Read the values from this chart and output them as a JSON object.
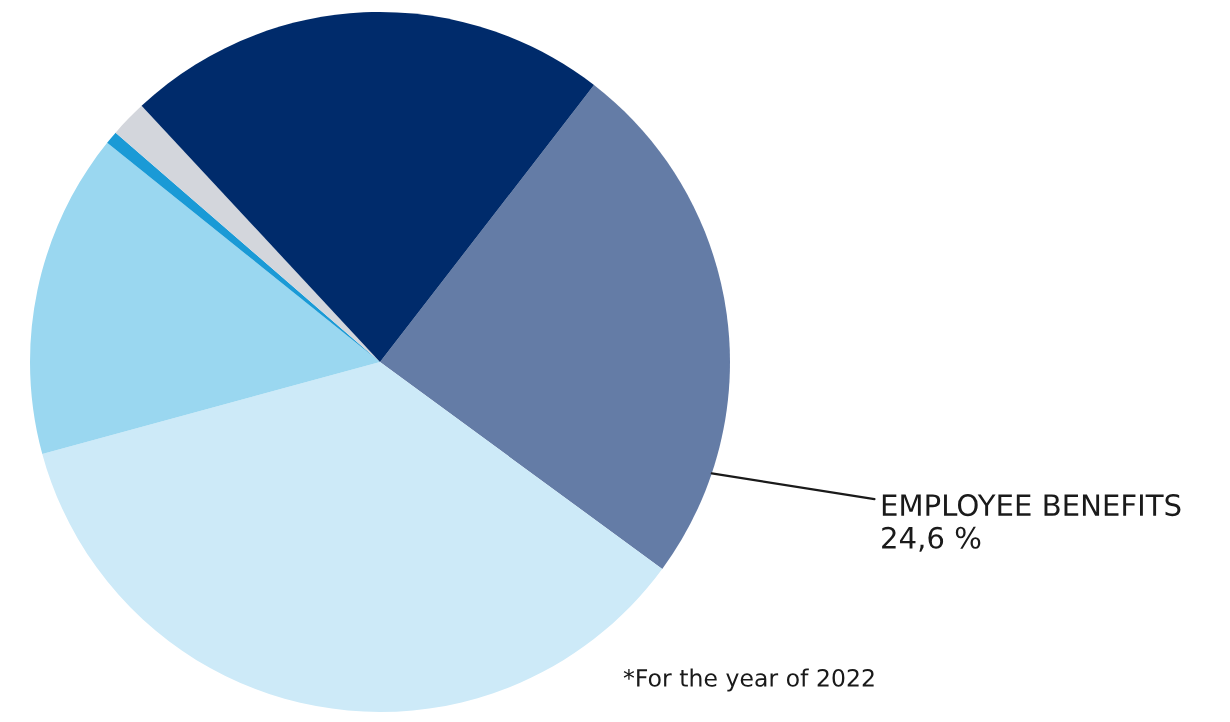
{
  "chart_data": {
    "type": "pie",
    "categories": [
      "EMPLOYEE BENEFITS",
      null,
      null,
      null,
      null,
      null
    ],
    "values": [
      24.6,
      35.7,
      15.0,
      0.6,
      1.7,
      22.4
    ],
    "value_labels": [
      "24,6 %",
      null,
      null,
      null,
      null,
      null
    ],
    "colors": [
      "#647ca6",
      "#cdeaf8",
      "#9ad7f0",
      "#1a9ad6",
      "#d3d6dc",
      "#002b6b"
    ],
    "annotations": [
      "*For the year of 2022"
    ]
  }
}
